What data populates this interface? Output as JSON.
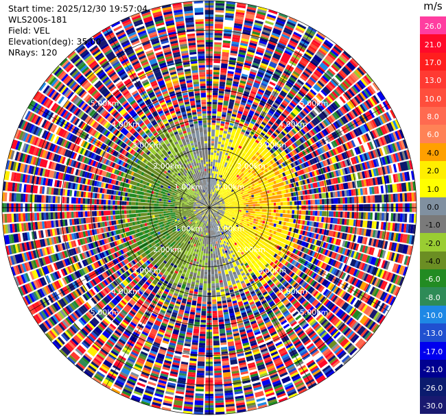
{
  "header": {
    "start_time": "Start time: 2025/12/30 19:57:04",
    "instrument": "WLS200s-181",
    "field": "Field: VEL",
    "elevation": "Elevation(deg): 35.00",
    "nrays": "NRays: 120"
  },
  "colorbar": {
    "unit": "m/s",
    "levels": [
      {
        "label": "26.0",
        "color": "#ff3da0",
        "text": "#ffffff"
      },
      {
        "label": "21.0",
        "color": "#ff0a2a",
        "text": "#ffffff"
      },
      {
        "label": "17.0",
        "color": "#ff1e1e",
        "text": "#ffffff"
      },
      {
        "label": "13.0",
        "color": "#ff3a32",
        "text": "#ffffff"
      },
      {
        "label": "10.0",
        "color": "#ff4e3c",
        "text": "#ffffff"
      },
      {
        "label": "8.0",
        "color": "#ff6a50",
        "text": "#ffffff"
      },
      {
        "label": "6.0",
        "color": "#ff8256",
        "text": "#ffffff"
      },
      {
        "label": "4.0",
        "color": "#ffa000",
        "text": "#000000"
      },
      {
        "label": "2.0",
        "color": "#ffee00",
        "text": "#000000"
      },
      {
        "label": "1.0",
        "color": "#ffff00",
        "text": "#000000"
      },
      {
        "label": "0.0",
        "color": "#8090a0",
        "text": "#000000"
      },
      {
        "label": "-1.0",
        "color": "#7a7a7a",
        "text": "#000000"
      },
      {
        "label": "-2.0",
        "color": "#9acd32",
        "text": "#000000"
      },
      {
        "label": "-4.0",
        "color": "#6b8e23",
        "text": "#000000"
      },
      {
        "label": "-6.0",
        "color": "#228b22",
        "text": "#ffffff"
      },
      {
        "label": "-8.0",
        "color": "#2e8b57",
        "text": "#ffffff"
      },
      {
        "label": "-10.0",
        "color": "#1e88e5",
        "text": "#ffffff"
      },
      {
        "label": "-13.0",
        "color": "#2050d0",
        "text": "#ffffff"
      },
      {
        "label": "-17.0",
        "color": "#0000ee",
        "text": "#ffffff"
      },
      {
        "label": "-21.0",
        "color": "#000090",
        "text": "#ffffff"
      },
      {
        "label": "-26.0",
        "color": "#0b1b6e",
        "text": "#ffffff"
      },
      {
        "label": "-30.0",
        "color": "#191970",
        "text": "#ffffff"
      }
    ]
  },
  "chart_data": {
    "type": "heatmap",
    "subtype": "radar-ppi",
    "field": "VEL",
    "unit": "m/s",
    "nrays": 120,
    "max_range_km": 7.0,
    "range_ring_labels": [
      "1.00km",
      "2.00km",
      "3.00km",
      "4.00km",
      "5.00km"
    ],
    "scale": {
      "min": -30.0,
      "max": 26.0
    },
    "gridlines": true
  }
}
